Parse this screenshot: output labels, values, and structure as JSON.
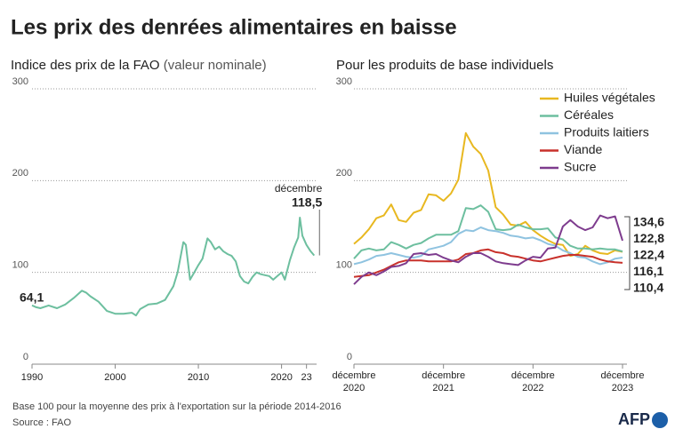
{
  "header": {
    "title": "Les prix des denrées alimentaires en baisse"
  },
  "chart_data": [
    {
      "type": "line",
      "subtitle": "Indice des prix de la FAO",
      "subtitle_note": "(valeur nominale)",
      "x": [
        1990,
        1990.5,
        1991,
        1992,
        1993,
        1994,
        1995,
        1996,
        1996.5,
        1997,
        1998,
        1999,
        2000,
        2001,
        2002,
        2002.5,
        2003,
        2004,
        2005,
        2006,
        2007,
        2007.5,
        2008.2,
        2008.5,
        2009,
        2009.5,
        2010,
        2010.5,
        2011.1,
        2011.5,
        2012,
        2012.5,
        2013,
        2013.5,
        2014,
        2014.5,
        2015,
        2015.5,
        2016,
        2016.5,
        2017,
        2017.5,
        2018,
        2018.5,
        2019,
        2019.5,
        2020,
        2020.4,
        2021,
        2021.5,
        2022,
        2022.2,
        2022.5,
        2023,
        2023.5,
        2023.92
      ],
      "series": [
        {
          "name": "Indice FAO",
          "color": "#6dbf9f",
          "values": [
            64.1,
            62,
            61,
            64,
            61,
            65,
            72,
            80,
            78,
            74,
            68,
            58,
            55,
            55,
            56,
            53,
            60,
            65,
            66,
            70,
            85,
            100,
            133,
            130,
            92,
            100,
            108,
            115,
            137,
            133,
            125,
            128,
            123,
            120,
            118,
            112,
            96,
            90,
            88,
            95,
            100,
            98,
            97,
            96,
            92,
            96,
            100,
            92,
            113,
            127,
            138,
            159.7,
            140,
            130,
            123,
            118.5
          ]
        }
      ],
      "annotations": [
        {
          "x": 1990,
          "value": 64.1,
          "label": "64,1"
        },
        {
          "x": 2023.92,
          "value": 118.5,
          "label": "118,5",
          "note": "décembre"
        }
      ],
      "xlim": [
        1990,
        2024
      ],
      "xticks": [
        1990,
        2000,
        2010,
        2020,
        {
          "value": 2023,
          "label": "23"
        }
      ],
      "ylim": [
        0,
        300
      ],
      "yticks": [
        0,
        100,
        200,
        300
      ],
      "grid": true
    },
    {
      "type": "line",
      "subtitle": "Pour les produits de base individuels",
      "x": [
        "2020-12",
        "2021-01",
        "2021-02",
        "2021-03",
        "2021-04",
        "2021-05",
        "2021-06",
        "2021-07",
        "2021-08",
        "2021-09",
        "2021-10",
        "2021-11",
        "2021-12",
        "2022-01",
        "2022-02",
        "2022-03",
        "2022-04",
        "2022-05",
        "2022-06",
        "2022-07",
        "2022-08",
        "2022-09",
        "2022-10",
        "2022-11",
        "2022-12",
        "2023-01",
        "2023-02",
        "2023-03",
        "2023-04",
        "2023-05",
        "2023-06",
        "2023-07",
        "2023-08",
        "2023-09",
        "2023-10",
        "2023-11",
        "2023-12"
      ],
      "series": [
        {
          "name": "Huiles végétales",
          "color": "#e8b820",
          "values": [
            131,
            138,
            147,
            159,
            162,
            174,
            157,
            155,
            165,
            168,
            185,
            184,
            178,
            186,
            201,
            251.8,
            237,
            229,
            211,
            171,
            163,
            152,
            151,
            155,
            146,
            140,
            135,
            131,
            130,
            118,
            120,
            129,
            124,
            121,
            120,
            124,
            122.4
          ],
          "end_label": "122,4"
        },
        {
          "name": "Céréales",
          "color": "#6dbf9f",
          "values": [
            115,
            124,
            126,
            124,
            125,
            133,
            130,
            126,
            130,
            132,
            137,
            141,
            141,
            141,
            145,
            170,
            169,
            173,
            166,
            147,
            146,
            147,
            152,
            149,
            147,
            147,
            148,
            138,
            136,
            129,
            126,
            126,
            125,
            126,
            125,
            125,
            122.8
          ],
          "end_label": "122,8"
        },
        {
          "name": "Produits laitiers",
          "color": "#8fc3e0",
          "values": [
            109,
            111,
            114,
            118,
            119,
            121,
            119,
            117,
            116,
            118,
            125,
            127,
            129,
            133,
            142,
            146,
            145,
            149,
            146,
            145,
            143,
            140,
            139,
            137,
            138,
            135,
            131,
            129,
            124,
            121,
            117,
            116,
            112,
            109,
            111,
            115,
            116.1
          ],
          "end_label": "116,1"
        },
        {
          "name": "Viande",
          "color": "#c8312b",
          "values": [
            95,
            96,
            97,
            100,
            103,
            107,
            111,
            113,
            113,
            113,
            112,
            112,
            112,
            112,
            114,
            120,
            121,
            124,
            125,
            122,
            121,
            118,
            117,
            115,
            113,
            112,
            114,
            116,
            118,
            119,
            119,
            118,
            117,
            114,
            112,
            111,
            110.4
          ],
          "end_label": "110,4"
        },
        {
          "name": "Sucre",
          "color": "#7e3c8e",
          "values": [
            87,
            95,
            100,
            97,
            101,
            106,
            107,
            110,
            120,
            121,
            119,
            120,
            116,
            113,
            111,
            117,
            121,
            121,
            117,
            112,
            110,
            109,
            108,
            113,
            117,
            116,
            126,
            127,
            150,
            157,
            150,
            146,
            149,
            162,
            159,
            161,
            134.6
          ],
          "end_label": "134,6"
        }
      ],
      "xlim": [
        "2020-12",
        "2023-12"
      ],
      "xticks": [
        {
          "value": "2020-12",
          "month": "décembre",
          "year": "2020"
        },
        {
          "value": "2021-12",
          "month": "décembre",
          "year": "2021"
        },
        {
          "value": "2022-12",
          "month": "décembre",
          "year": "2022"
        },
        {
          "value": "2023-12",
          "month": "décembre",
          "year": "2023"
        }
      ],
      "ylim": [
        0,
        300
      ],
      "yticks": [
        0,
        100,
        200,
        300
      ],
      "grid": true,
      "legend": "top-right"
    }
  ],
  "footer": {
    "note": "Base 100 pour la moyenne des prix à l'exportation sur la période 2014-2016",
    "source": "Source : FAO",
    "logo": "AFP"
  }
}
